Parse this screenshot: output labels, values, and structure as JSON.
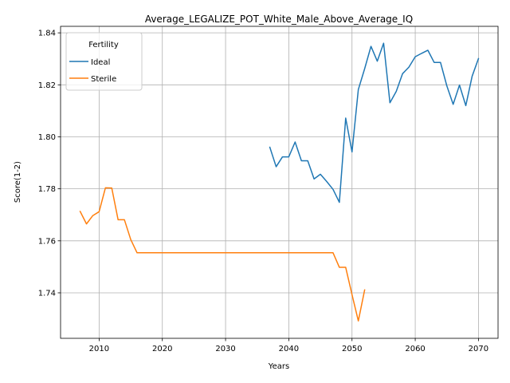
{
  "chart_data": {
    "type": "line",
    "title": "Average_LEGALIZE_POT_White_Male_Above_Average_IQ",
    "xlabel": "Years",
    "ylabel": "Score(1-2)",
    "xlim": [
      2003.9,
      2073.1
    ],
    "ylim": [
      1.7225,
      1.8425
    ],
    "xticks": [
      2010,
      2020,
      2030,
      2040,
      2050,
      2060,
      2070
    ],
    "yticks": [
      1.74,
      1.76,
      1.78,
      1.8,
      1.82,
      1.84
    ],
    "xtick_labels": [
      "2010",
      "2020",
      "2030",
      "2040",
      "2050",
      "2060",
      "2070"
    ],
    "ytick_labels": [
      "1.74",
      "1.76",
      "1.78",
      "1.80",
      "1.82",
      "1.84"
    ],
    "grid": true,
    "legend": {
      "title": "Fertility",
      "placement": "top-left"
    },
    "series": [
      {
        "name": "Ideal",
        "color": "#1f77b4",
        "x": [
          2037,
          2038,
          2039,
          2040,
          2041,
          2042,
          2043,
          2044,
          2045,
          2046,
          2047,
          2048,
          2049,
          2050,
          2051,
          2052,
          2053,
          2054,
          2055,
          2056,
          2057,
          2058,
          2059,
          2060,
          2061,
          2062,
          2063,
          2064,
          2065,
          2066,
          2067,
          2068,
          2069,
          2070
        ],
        "y": [
          1.796,
          1.7885,
          1.7923,
          1.7923,
          1.798,
          1.7908,
          1.7908,
          1.7838,
          1.7856,
          1.7828,
          1.7798,
          1.7748,
          1.8072,
          1.7942,
          1.8182,
          1.8262,
          1.8348,
          1.8291,
          1.836,
          1.8131,
          1.8175,
          1.8243,
          1.8268,
          1.8308,
          1.8321,
          1.8333,
          1.8286,
          1.8286,
          1.8196,
          1.8125,
          1.8199,
          1.812,
          1.8233,
          1.8301
        ]
      },
      {
        "name": "Sterile",
        "color": "#ff7f0e",
        "x": [
          2007,
          2008,
          2009,
          2010,
          2011,
          2012,
          2013,
          2014,
          2015,
          2016,
          2017,
          2018,
          2019,
          2020,
          2021,
          2022,
          2023,
          2024,
          2025,
          2026,
          2027,
          2028,
          2029,
          2030,
          2031,
          2032,
          2033,
          2034,
          2035,
          2036,
          2037,
          2038,
          2039,
          2040,
          2041,
          2042,
          2043,
          2044,
          2045,
          2046,
          2047,
          2048,
          2049,
          2050,
          2051,
          2052
        ],
        "y": [
          1.7713,
          1.7665,
          1.7697,
          1.7712,
          1.7804,
          1.7803,
          1.7681,
          1.7681,
          1.7605,
          1.7554,
          1.7554,
          1.7554,
          1.7554,
          1.7554,
          1.7554,
          1.7554,
          1.7554,
          1.7554,
          1.7554,
          1.7554,
          1.7554,
          1.7554,
          1.7554,
          1.7554,
          1.7554,
          1.7554,
          1.7554,
          1.7554,
          1.7554,
          1.7554,
          1.7554,
          1.7554,
          1.7554,
          1.7554,
          1.7554,
          1.7554,
          1.7554,
          1.7554,
          1.7554,
          1.7554,
          1.7554,
          1.7498,
          1.7498,
          1.7393,
          1.7292,
          1.7411
        ]
      }
    ]
  }
}
